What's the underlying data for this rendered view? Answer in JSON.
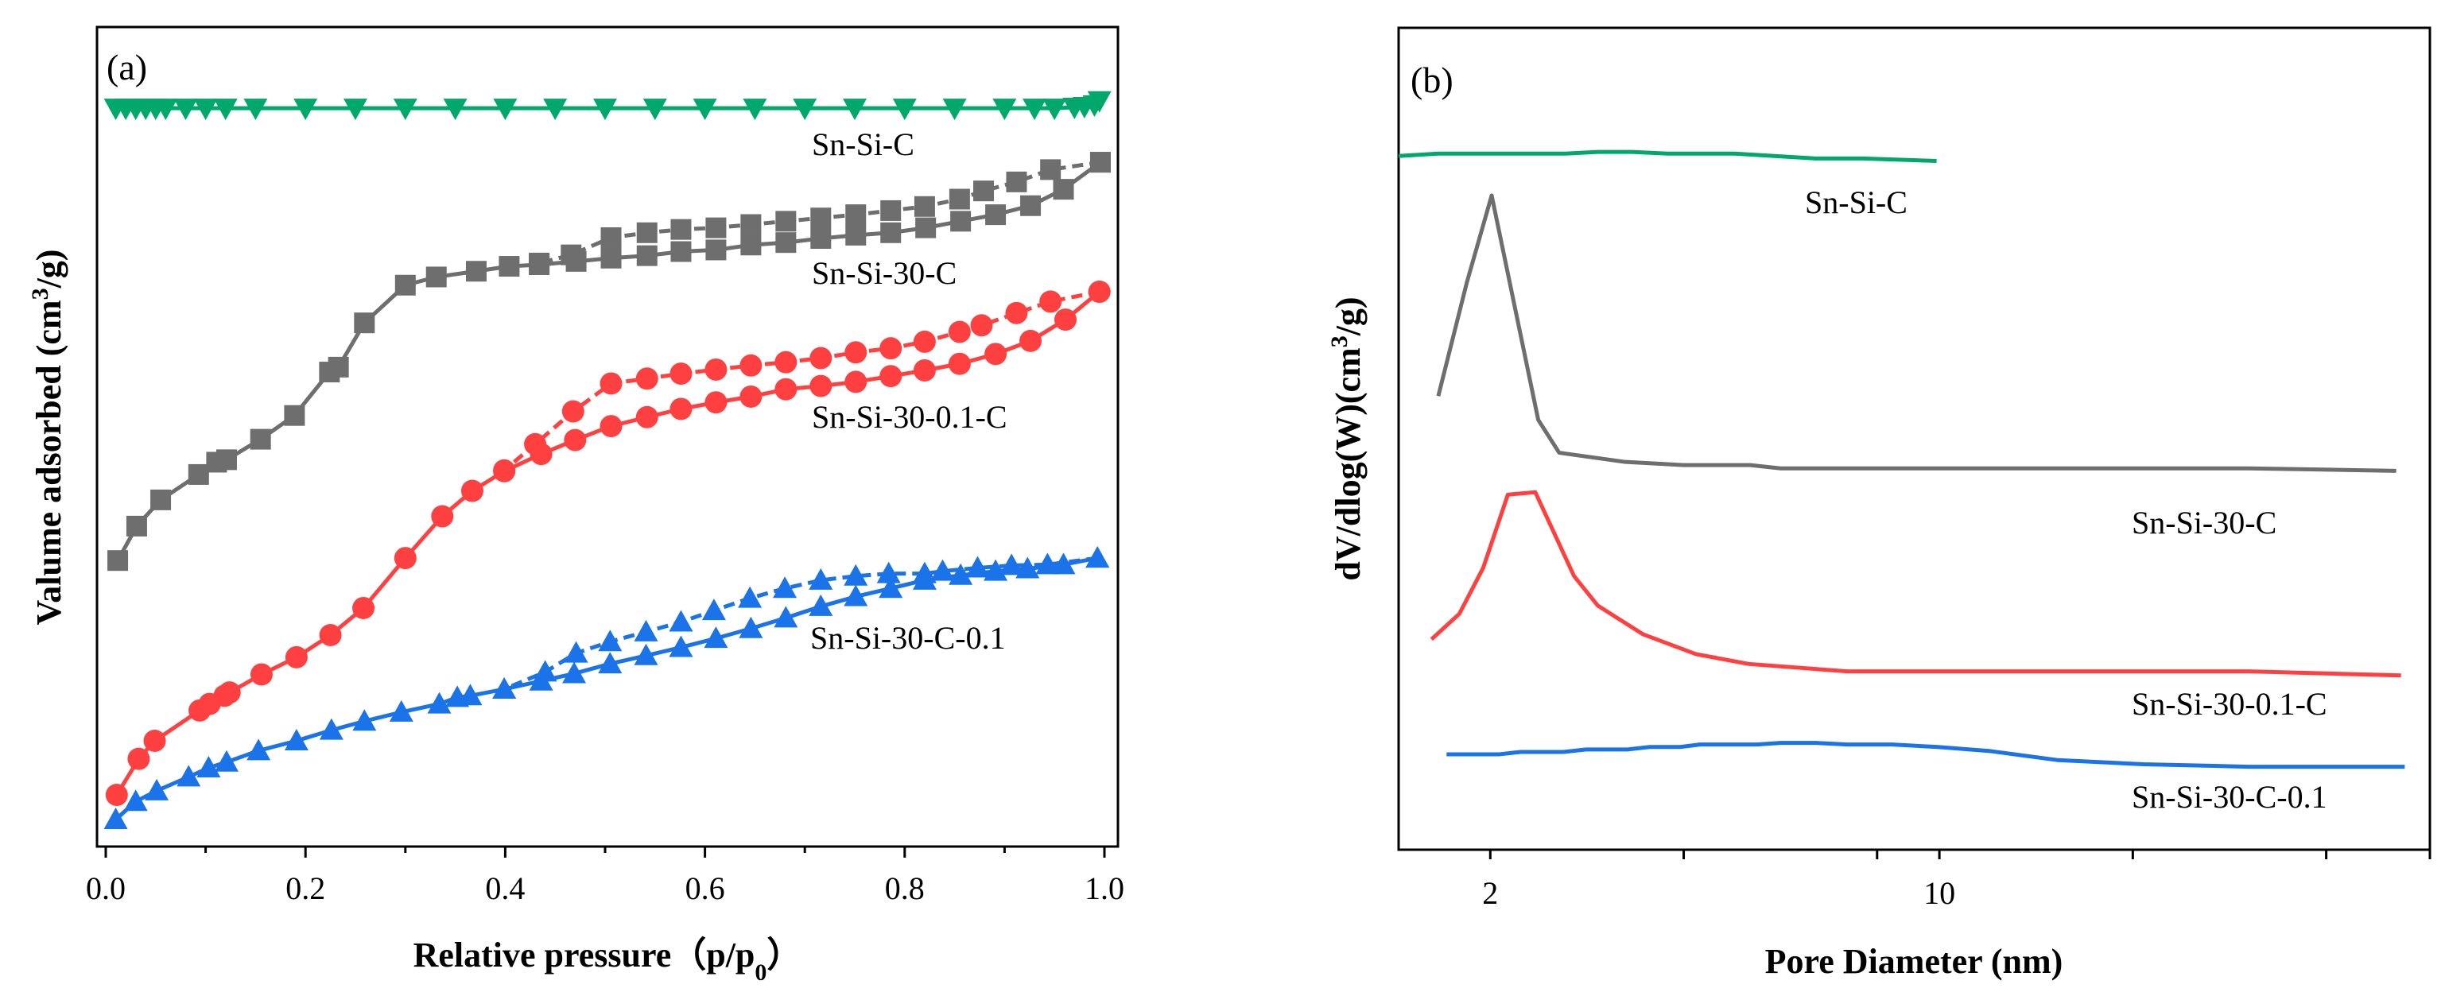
{
  "chart_data": [
    {
      "panel": "(a)",
      "type": "line",
      "xlabel": "Relative pressure（p/p",
      "xlabel_sub": "0",
      "xlabel_end": "）",
      "ylabel": "Valume adsorbed (cm",
      "ylabel_sup": "3",
      "ylabel_end": "/g)",
      "xlim": [
        0,
        1.0
      ],
      "ylim": [
        0,
        100
      ],
      "xticks": [
        0.0,
        0.2,
        0.4,
        0.6,
        0.8,
        1.0
      ],
      "xtick_labels": [
        "0.0",
        "0.2",
        "0.4",
        "0.6",
        "0.8",
        "1.0"
      ],
      "yticks_visible": false,
      "grid": false,
      "series": [
        {
          "name": "Sn-Si-C",
          "color": "#00a86b",
          "marker": "triangle-down",
          "adsorption": {
            "x": [
              0.01,
              0.02,
              0.03,
              0.04,
              0.05,
              0.06,
              0.08,
              0.1,
              0.12,
              0.15,
              0.2,
              0.25,
              0.3,
              0.35,
              0.4,
              0.45,
              0.5,
              0.55,
              0.6,
              0.65,
              0.7,
              0.75,
              0.8,
              0.85,
              0.9,
              0.93,
              0.95,
              0.97,
              0.98,
              0.99,
              0.995
            ],
            "y": [
              90.1,
              90.1,
              90.1,
              90.1,
              90.1,
              90.1,
              90.1,
              90.1,
              90.1,
              90.1,
              90.1,
              90.1,
              90.1,
              90.1,
              90.1,
              90.1,
              90.1,
              90.1,
              90.1,
              90.1,
              90.1,
              90.1,
              90.1,
              90.1,
              90.1,
              90.1,
              90.1,
              90.2,
              90.3,
              90.5,
              91.0
            ]
          },
          "desorption": {
            "x": [],
            "y": []
          }
        },
        {
          "name": "Sn-Si-30-C",
          "color": "#6e6e6e",
          "marker": "square",
          "adsorption": {
            "x": [
              0.012,
              0.031,
              0.055,
              0.093,
              0.111,
              0.121,
              0.155,
              0.189,
              0.224,
              0.233,
              0.259,
              0.3,
              0.331,
              0.371,
              0.404,
              0.434,
              0.471,
              0.506,
              0.542,
              0.576,
              0.611,
              0.646,
              0.681,
              0.716,
              0.751,
              0.786,
              0.821,
              0.856,
              0.891,
              0.926,
              0.959,
              0.996
            ],
            "y": [
              34.9,
              39.1,
              42.3,
              45.4,
              46.9,
              47.2,
              49.7,
              52.6,
              57.9,
              58.5,
              63.9,
              68.5,
              69.5,
              70.2,
              70.8,
              71.0,
              71.4,
              71.8,
              72.1,
              72.6,
              72.8,
              73.4,
              73.7,
              74.2,
              74.6,
              74.9,
              75.5,
              76.3,
              77.1,
              78.2,
              80.2,
              83.5
            ]
          },
          "desorption": {
            "x": [
              0.996,
              0.946,
              0.912,
              0.879,
              0.855,
              0.82,
              0.786,
              0.751,
              0.716,
              0.681,
              0.646,
              0.611,
              0.576,
              0.542,
              0.506,
              0.466,
              0.434
            ],
            "y": [
              83.5,
              82.6,
              81.1,
              80.0,
              79.0,
              78.1,
              77.6,
              77.1,
              76.7,
              76.3,
              75.9,
              75.5,
              75.3,
              74.9,
              74.3,
              72.2,
              71.2
            ]
          }
        },
        {
          "name": "Sn-Si-30-0.1-C",
          "color": "#ff4040",
          "marker": "circle",
          "adsorption": {
            "x": [
              0.011,
              0.033,
              0.049,
              0.094,
              0.104,
              0.119,
              0.124,
              0.156,
              0.191,
              0.225,
              0.258,
              0.3,
              0.337,
              0.367,
              0.399,
              0.436,
              0.47,
              0.506,
              0.542,
              0.576,
              0.611,
              0.646,
              0.681,
              0.716,
              0.751,
              0.786,
              0.82,
              0.855,
              0.891,
              0.926,
              0.961,
              0.995
            ],
            "y": [
              6.3,
              10.7,
              12.9,
              16.6,
              17.4,
              18.4,
              18.8,
              21.0,
              23.1,
              25.8,
              29.1,
              35.2,
              40.3,
              43.4,
              45.8,
              47.9,
              49.6,
              51.3,
              52.4,
              53.4,
              54.2,
              54.9,
              55.8,
              56.2,
              56.7,
              57.4,
              58.1,
              58.9,
              60.1,
              61.7,
              64.3,
              67.7
            ]
          },
          "desorption": {
            "x": [
              0.995,
              0.946,
              0.912,
              0.877,
              0.855,
              0.82,
              0.786,
              0.751,
              0.716,
              0.681,
              0.646,
              0.611,
              0.576,
              0.542,
              0.506,
              0.468,
              0.43,
              0.399
            ],
            "y": [
              67.7,
              66.5,
              65.1,
              63.6,
              62.8,
              61.6,
              60.8,
              60.3,
              59.6,
              59.1,
              58.7,
              58.2,
              57.7,
              57.1,
              56.5,
              53.1,
              49.1,
              45.9
            ]
          }
        },
        {
          "name": "Sn-Si-30-C-0.1",
          "color": "#1a73e8",
          "marker": "triangle-up",
          "adsorption": {
            "x": [
              0.01,
              0.03,
              0.051,
              0.083,
              0.103,
              0.121,
              0.153,
              0.191,
              0.226,
              0.259,
              0.296,
              0.334,
              0.352,
              0.365,
              0.399,
              0.436,
              0.469,
              0.505,
              0.541,
              0.576,
              0.611,
              0.646,
              0.681,
              0.716,
              0.751,
              0.786,
              0.82,
              0.856,
              0.891,
              0.923,
              0.959,
              0.993
            ],
            "y": [
              3.3,
              5.5,
              6.8,
              8.5,
              9.6,
              10.3,
              11.7,
              12.9,
              14.2,
              15.3,
              16.4,
              17.4,
              18.2,
              18.4,
              19.2,
              20.2,
              21.1,
              22.3,
              23.3,
              24.3,
              25.4,
              26.6,
              27.9,
              29.3,
              30.5,
              31.5,
              32.5,
              33.1,
              33.6,
              33.9,
              34.4,
              35.2
            ]
          },
          "desorption": {
            "x": [
              0.993,
              0.943,
              0.907,
              0.873,
              0.838,
              0.82,
              0.784,
              0.751,
              0.716,
              0.68,
              0.645,
              0.609,
              0.576,
              0.541,
              0.505,
              0.471,
              0.44,
              0.399
            ],
            "y": [
              35.2,
              34.4,
              34.3,
              34.0,
              33.6,
              33.3,
              33.3,
              33.0,
              32.5,
              31.5,
              30.3,
              28.8,
              27.4,
              26.2,
              25.0,
              23.6,
              21.3,
              19.2
            ]
          }
        }
      ]
    },
    {
      "panel": "(b)",
      "type": "line",
      "xlabel": "Pore Diameter (nm)",
      "ylabel": "dV/dlog(W)(cm",
      "ylabel_sup": "3",
      "ylabel_end": "/g)",
      "xscale": "log",
      "xlim": [
        1.44,
        58
      ],
      "ylim": [
        0,
        100
      ],
      "xticks": [
        2,
        4,
        8,
        10,
        20,
        40
      ],
      "xtick_labels": [
        "2",
        "",
        "",
        "10",
        "",
        ""
      ],
      "yticks_visible": false,
      "grid": false,
      "series": [
        {
          "name": "Sn-Si-C",
          "color": "#00a86b",
          "x": [
            1.44,
            1.66,
            2.62,
            2.94,
            3.32,
            3.78,
            4.8,
            6.42,
            7.6,
            9.9
          ],
          "y": [
            84.4,
            84.7,
            84.7,
            84.9,
            84.9,
            84.7,
            84.7,
            84.1,
            84.1,
            83.8
          ]
        },
        {
          "name": "Sn-Si-30-C",
          "color": "#6e6e6e",
          "x": [
            1.66,
            1.84,
            2.01,
            2.375,
            2.56,
            3.23,
            4.0,
            5.08,
            5.66,
            30.3,
            51.4
          ],
          "y": [
            55.2,
            69.1,
            79.6,
            52.3,
            48.3,
            47.2,
            46.8,
            46.8,
            46.4,
            46.4,
            46.1
          ]
        },
        {
          "name": "Sn-Si-30-0.1-C",
          "color": "#ff4040",
          "x": [
            1.62,
            1.79,
            1.95,
            2.13,
            2.35,
            2.7,
            2.94,
            3.46,
            4.18,
            5.05,
            7.19,
            30.3,
            52.3
          ],
          "y": [
            25.6,
            28.7,
            34.3,
            43.2,
            43.5,
            33.3,
            29.7,
            26.2,
            23.8,
            22.6,
            21.7,
            21.7,
            21.2
          ]
        },
        {
          "name": "Sn-Si-30-C-0.1",
          "color": "#1a73e8",
          "x": [
            1.71,
            2.06,
            2.23,
            2.6,
            2.82,
            3.27,
            3.54,
            3.95,
            4.24,
            5.2,
            5.66,
            6.42,
            7.19,
            8.44,
            9.94,
            12.0,
            15.3,
            20.8,
            30.3,
            53
          ],
          "y": [
            11.6,
            11.6,
            11.9,
            11.9,
            12.2,
            12.2,
            12.5,
            12.5,
            12.8,
            12.8,
            13.0,
            13.0,
            12.8,
            12.8,
            12.5,
            12.0,
            10.9,
            10.4,
            10.1,
            10.1
          ]
        }
      ]
    }
  ]
}
